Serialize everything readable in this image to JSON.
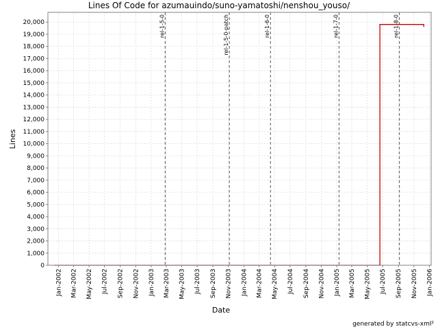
{
  "chart_data": {
    "type": "line",
    "title": "Lines Of Code for azumauindo/suno-yamatoshi/nenshou_youso/",
    "xlabel": "Date",
    "ylabel": "Lines",
    "ylim": [
      0,
      20800
    ],
    "yticks": [
      0,
      1000,
      2000,
      3000,
      4000,
      5000,
      6000,
      7000,
      8000,
      9000,
      10000,
      11000,
      12000,
      13000,
      14000,
      15000,
      16000,
      17000,
      18000,
      19000,
      20000
    ],
    "ytick_labels": [
      "0",
      "1,000",
      "2,000",
      "3,000",
      "4,000",
      "5,000",
      "6,000",
      "7,000",
      "8,000",
      "9,000",
      "10,000",
      "11,000",
      "12,000",
      "13,000",
      "14,000",
      "15,000",
      "16,000",
      "17,000",
      "18,000",
      "19,000",
      "20,000"
    ],
    "xlim": [
      "2001-11-20",
      "2006-01-08"
    ],
    "xticks": [
      "2002-01-01",
      "2002-03-01",
      "2002-05-01",
      "2002-07-01",
      "2002-09-01",
      "2002-11-01",
      "2003-01-01",
      "2003-03-01",
      "2003-05-01",
      "2003-07-01",
      "2003-09-01",
      "2003-11-01",
      "2004-01-01",
      "2004-03-01",
      "2004-05-01",
      "2004-07-01",
      "2004-09-01",
      "2004-11-01",
      "2005-01-01",
      "2005-03-01",
      "2005-05-01",
      "2005-07-01",
      "2005-09-01",
      "2005-11-01",
      "2006-01-01"
    ],
    "xtick_labels": [
      "Jan-2002",
      "Mar-2002",
      "May-2002",
      "Jul-2002",
      "Sep-2002",
      "Nov-2002",
      "Jan-2003",
      "Mar-2003",
      "May-2003",
      "Jul-2003",
      "Sep-2003",
      "Nov-2003",
      "Jan-2004",
      "Mar-2004",
      "May-2004",
      "Jul-2004",
      "Sep-2004",
      "Nov-2004",
      "Jan-2005",
      "Mar-2005",
      "May-2005",
      "Jul-2005",
      "Sep-2005",
      "Nov-2005",
      "Jan-2006"
    ],
    "grid": true,
    "series": [
      {
        "color": "#c00000",
        "step": true,
        "points": [
          {
            "x": "2001-12-15",
            "y": 0
          },
          {
            "x": "2005-06-20",
            "y": 0
          },
          {
            "x": "2005-06-20",
            "y": 19800
          },
          {
            "x": "2005-12-10",
            "y": 19800
          },
          {
            "x": "2005-12-10",
            "y": 19600
          }
        ]
      }
    ],
    "releases": [
      {
        "label": "rel-1-5-0",
        "date": "2003-02-25"
      },
      {
        "label": "rel-1-5-0-patch",
        "date": "2003-11-05"
      },
      {
        "label": "rel-1-6-0",
        "date": "2004-04-15"
      },
      {
        "label": "rel-1-7-0",
        "date": "2005-01-10"
      },
      {
        "label": "rel-1-8-0",
        "date": "2005-09-05"
      }
    ]
  },
  "footer": "generated by statcvs-xml²"
}
